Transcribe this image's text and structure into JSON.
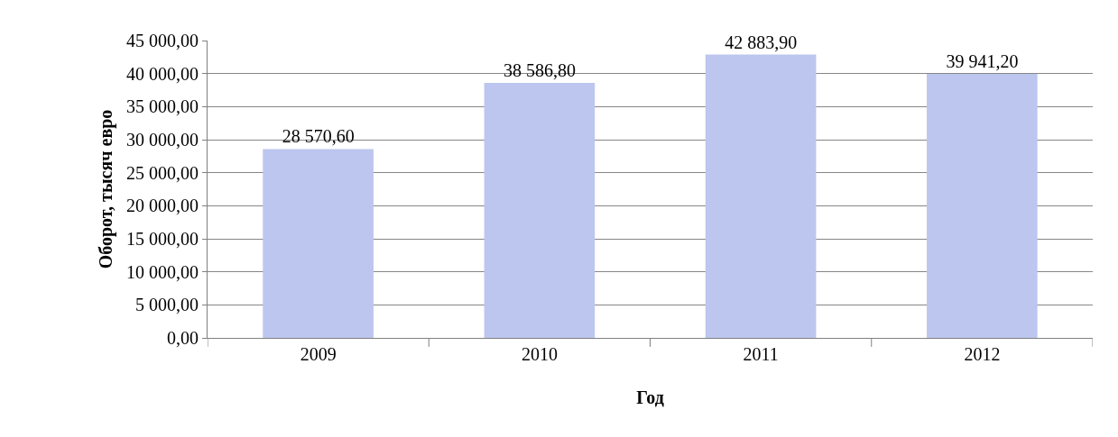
{
  "chart_data": {
    "type": "bar",
    "categories": [
      "2009",
      "2010",
      "2011",
      "2012"
    ],
    "values": [
      28570.6,
      38586.8,
      42883.9,
      39941.2
    ],
    "value_labels": [
      "28 570,60",
      "38 586,80",
      "42 883,90",
      "39 941,20"
    ],
    "color": "#bcc6ee",
    "xlabel": "Год",
    "ylabel": "Оборот, тысяч евро",
    "ylim": [
      0,
      45000
    ],
    "yticks": [
      {
        "value": 0,
        "label": "0,00"
      },
      {
        "value": 5000,
        "label": "5 000,00"
      },
      {
        "value": 10000,
        "label": "10 000,00"
      },
      {
        "value": 15000,
        "label": "15 000,00"
      },
      {
        "value": 20000,
        "label": "20 000,00"
      },
      {
        "value": 25000,
        "label": "25 000,00"
      },
      {
        "value": 30000,
        "label": "30 000,00"
      },
      {
        "value": 35000,
        "label": "35 000,00"
      },
      {
        "value": 40000,
        "label": "40 000,00"
      },
      {
        "value": 45000,
        "label": "45 000,00"
      }
    ],
    "grid": "y",
    "legend": false
  }
}
